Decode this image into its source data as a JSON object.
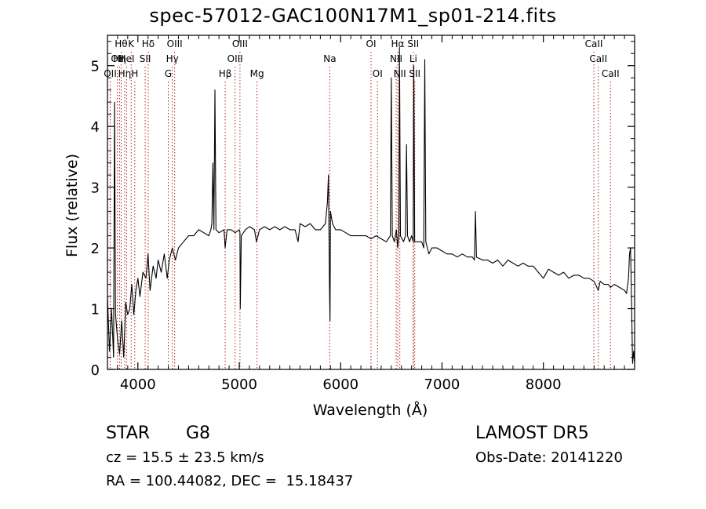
{
  "chart_data": {
    "type": "line",
    "title": "spec-57012-GAC100N17M1_sp01-214.fits",
    "xlabel": "Wavelength (Å)",
    "ylabel": "Flux (relative)",
    "xlim": [
      3700,
      8900
    ],
    "ylim": [
      0,
      5.5
    ],
    "x_ticks": [
      4000,
      5000,
      6000,
      7000,
      8000
    ],
    "y_ticks": [
      0,
      1,
      2,
      3,
      4,
      5
    ],
    "grid": false,
    "series": [
      {
        "points": [
          [
            3700,
            1.2
          ],
          [
            3720,
            0.3
          ],
          [
            3740,
            1.0
          ],
          [
            3760,
            0.2
          ],
          [
            3770,
            4.4
          ],
          [
            3780,
            0.9
          ],
          [
            3800,
            0.5
          ],
          [
            3820,
            0.25
          ],
          [
            3840,
            0.8
          ],
          [
            3860,
            0.2
          ],
          [
            3880,
            1.1
          ],
          [
            3900,
            0.9
          ],
          [
            3920,
            1.0
          ],
          [
            3940,
            1.4
          ],
          [
            3960,
            0.9
          ],
          [
            3980,
            1.3
          ],
          [
            4000,
            1.5
          ],
          [
            4020,
            1.2
          ],
          [
            4050,
            1.6
          ],
          [
            4080,
            1.5
          ],
          [
            4100,
            1.9
          ],
          [
            4120,
            1.3
          ],
          [
            4150,
            1.7
          ],
          [
            4180,
            1.5
          ],
          [
            4200,
            1.8
          ],
          [
            4230,
            1.6
          ],
          [
            4260,
            1.9
          ],
          [
            4290,
            1.5
          ],
          [
            4310,
            1.8
          ],
          [
            4340,
            2.0
          ],
          [
            4370,
            1.8
          ],
          [
            4400,
            2.0
          ],
          [
            4450,
            2.1
          ],
          [
            4500,
            2.2
          ],
          [
            4550,
            2.2
          ],
          [
            4600,
            2.3
          ],
          [
            4650,
            2.25
          ],
          [
            4700,
            2.2
          ],
          [
            4720,
            2.3
          ],
          [
            4730,
            2.4
          ],
          [
            4740,
            3.4
          ],
          [
            4750,
            2.3
          ],
          [
            4760,
            4.6
          ],
          [
            4770,
            2.3
          ],
          [
            4800,
            2.25
          ],
          [
            4850,
            2.3
          ],
          [
            4861,
            2.0
          ],
          [
            4880,
            2.3
          ],
          [
            4920,
            2.3
          ],
          [
            4960,
            2.25
          ],
          [
            5000,
            2.3
          ],
          [
            5007,
            2.25
          ],
          [
            5010,
            1.0
          ],
          [
            5020,
            2.2
          ],
          [
            5060,
            2.3
          ],
          [
            5100,
            2.35
          ],
          [
            5150,
            2.3
          ],
          [
            5170,
            2.1
          ],
          [
            5200,
            2.3
          ],
          [
            5250,
            2.35
          ],
          [
            5300,
            2.3
          ],
          [
            5350,
            2.35
          ],
          [
            5400,
            2.3
          ],
          [
            5450,
            2.35
          ],
          [
            5500,
            2.3
          ],
          [
            5550,
            2.3
          ],
          [
            5580,
            2.1
          ],
          [
            5600,
            2.4
          ],
          [
            5650,
            2.35
          ],
          [
            5700,
            2.4
          ],
          [
            5750,
            2.3
          ],
          [
            5800,
            2.3
          ],
          [
            5850,
            2.4
          ],
          [
            5870,
            2.75
          ],
          [
            5880,
            3.2
          ],
          [
            5890,
            1.4
          ],
          [
            5895,
            0.8
          ],
          [
            5900,
            2.6
          ],
          [
            5920,
            2.4
          ],
          [
            5950,
            2.3
          ],
          [
            6000,
            2.3
          ],
          [
            6050,
            2.25
          ],
          [
            6100,
            2.2
          ],
          [
            6150,
            2.2
          ],
          [
            6200,
            2.2
          ],
          [
            6250,
            2.2
          ],
          [
            6300,
            2.15
          ],
          [
            6350,
            2.2
          ],
          [
            6400,
            2.15
          ],
          [
            6450,
            2.1
          ],
          [
            6490,
            2.2
          ],
          [
            6500,
            4.8
          ],
          [
            6510,
            2.2
          ],
          [
            6530,
            2.1
          ],
          [
            6550,
            2.3
          ],
          [
            6563,
            2.0
          ],
          [
            6575,
            2.2
          ],
          [
            6580,
            5.3
          ],
          [
            6590,
            2.2
          ],
          [
            6620,
            2.1
          ],
          [
            6640,
            2.2
          ],
          [
            6650,
            3.7
          ],
          [
            6660,
            2.2
          ],
          [
            6680,
            2.1
          ],
          [
            6700,
            2.2
          ],
          [
            6716,
            2.1
          ],
          [
            6722,
            5.0
          ],
          [
            6730,
            2.1
          ],
          [
            6760,
            2.1
          ],
          [
            6800,
            2.1
          ],
          [
            6820,
            2.0
          ],
          [
            6830,
            5.1
          ],
          [
            6840,
            2.1
          ],
          [
            6870,
            1.9
          ],
          [
            6900,
            2.0
          ],
          [
            6950,
            2.0
          ],
          [
            7000,
            1.95
          ],
          [
            7050,
            1.9
          ],
          [
            7100,
            1.9
          ],
          [
            7150,
            1.85
          ],
          [
            7200,
            1.9
          ],
          [
            7250,
            1.85
          ],
          [
            7300,
            1.85
          ],
          [
            7320,
            1.8
          ],
          [
            7330,
            2.6
          ],
          [
            7340,
            1.85
          ],
          [
            7400,
            1.8
          ],
          [
            7450,
            1.8
          ],
          [
            7500,
            1.75
          ],
          [
            7550,
            1.8
          ],
          [
            7600,
            1.7
          ],
          [
            7650,
            1.8
          ],
          [
            7700,
            1.75
          ],
          [
            7750,
            1.7
          ],
          [
            7800,
            1.75
          ],
          [
            7850,
            1.7
          ],
          [
            7900,
            1.7
          ],
          [
            7950,
            1.6
          ],
          [
            8000,
            1.5
          ],
          [
            8050,
            1.65
          ],
          [
            8100,
            1.6
          ],
          [
            8150,
            1.55
          ],
          [
            8200,
            1.6
          ],
          [
            8250,
            1.5
          ],
          [
            8300,
            1.55
          ],
          [
            8350,
            1.55
          ],
          [
            8400,
            1.5
          ],
          [
            8450,
            1.5
          ],
          [
            8500,
            1.45
          ],
          [
            8542,
            1.3
          ],
          [
            8560,
            1.45
          ],
          [
            8600,
            1.4
          ],
          [
            8640,
            1.4
          ],
          [
            8662,
            1.35
          ],
          [
            8700,
            1.4
          ],
          [
            8750,
            1.35
          ],
          [
            8800,
            1.3
          ],
          [
            8820,
            1.25
          ],
          [
            8840,
            1.5
          ],
          [
            8850,
            1.9
          ],
          [
            8860,
            2.0
          ],
          [
            8870,
            1.1
          ],
          [
            8880,
            0.1
          ],
          [
            8890,
            0.3
          ],
          [
            8900,
            0.1
          ]
        ]
      }
    ],
    "lines": [
      {
        "x": 3727,
        "row": 2,
        "label": "OII"
      },
      {
        "x": 3798,
        "row": 1,
        "label": "OII"
      },
      {
        "x": 3820,
        "row": 1,
        "label": "Hη"
      },
      {
        "x": 3835,
        "row": 0,
        "label": "Hθ"
      },
      {
        "x": 3870,
        "row": 2,
        "label": "Hη"
      },
      {
        "x": 3889,
        "row": 1,
        "label": "HeI"
      },
      {
        "x": 3934,
        "row": 0,
        "label": "K"
      },
      {
        "x": 3969,
        "row": 2,
        "label": "H"
      },
      {
        "x": 4072,
        "row": 1,
        "label": "SII"
      },
      {
        "x": 4102,
        "row": 0,
        "label": "Hδ"
      },
      {
        "x": 4300,
        "row": 2,
        "label": "G"
      },
      {
        "x": 4340,
        "row": 1,
        "label": "Hγ"
      },
      {
        "x": 4363,
        "row": 0,
        "label": "OIII"
      },
      {
        "x": 4861,
        "row": 2,
        "label": "Hβ"
      },
      {
        "x": 4959,
        "row": 1,
        "label": "OIII"
      },
      {
        "x": 5007,
        "row": 0,
        "label": "OIII"
      },
      {
        "x": 5175,
        "row": 2,
        "label": "Mg"
      },
      {
        "x": 5893,
        "row": 1,
        "label": "Na"
      },
      {
        "x": 6300,
        "row": 0,
        "label": "OI"
      },
      {
        "x": 6364,
        "row": 2,
        "label": "OI"
      },
      {
        "x": 6548,
        "row": 1,
        "label": "NII"
      },
      {
        "x": 6563,
        "row": 0,
        "label": "Hα"
      },
      {
        "x": 6584,
        "row": 2,
        "label": "NII"
      },
      {
        "x": 6716,
        "row": 0,
        "label": "SII"
      },
      {
        "x": 6717,
        "row": 1,
        "label": "Li"
      },
      {
        "x": 6731,
        "row": 2,
        "label": "SII"
      },
      {
        "x": 8498,
        "row": 0,
        "label": "CaII"
      },
      {
        "x": 8542,
        "row": 1,
        "label": "CaII"
      },
      {
        "x": 8662,
        "row": 2,
        "label": "CaII"
      }
    ]
  },
  "info": {
    "class": "STAR",
    "subclass": "G8",
    "cz": "cz = 15.5 ± 23.5 km/s",
    "coords": "RA = 100.44082, DEC =  15.18437",
    "survey": "LAMOST DR5",
    "obs_date": "Obs-Date: 20141220"
  }
}
